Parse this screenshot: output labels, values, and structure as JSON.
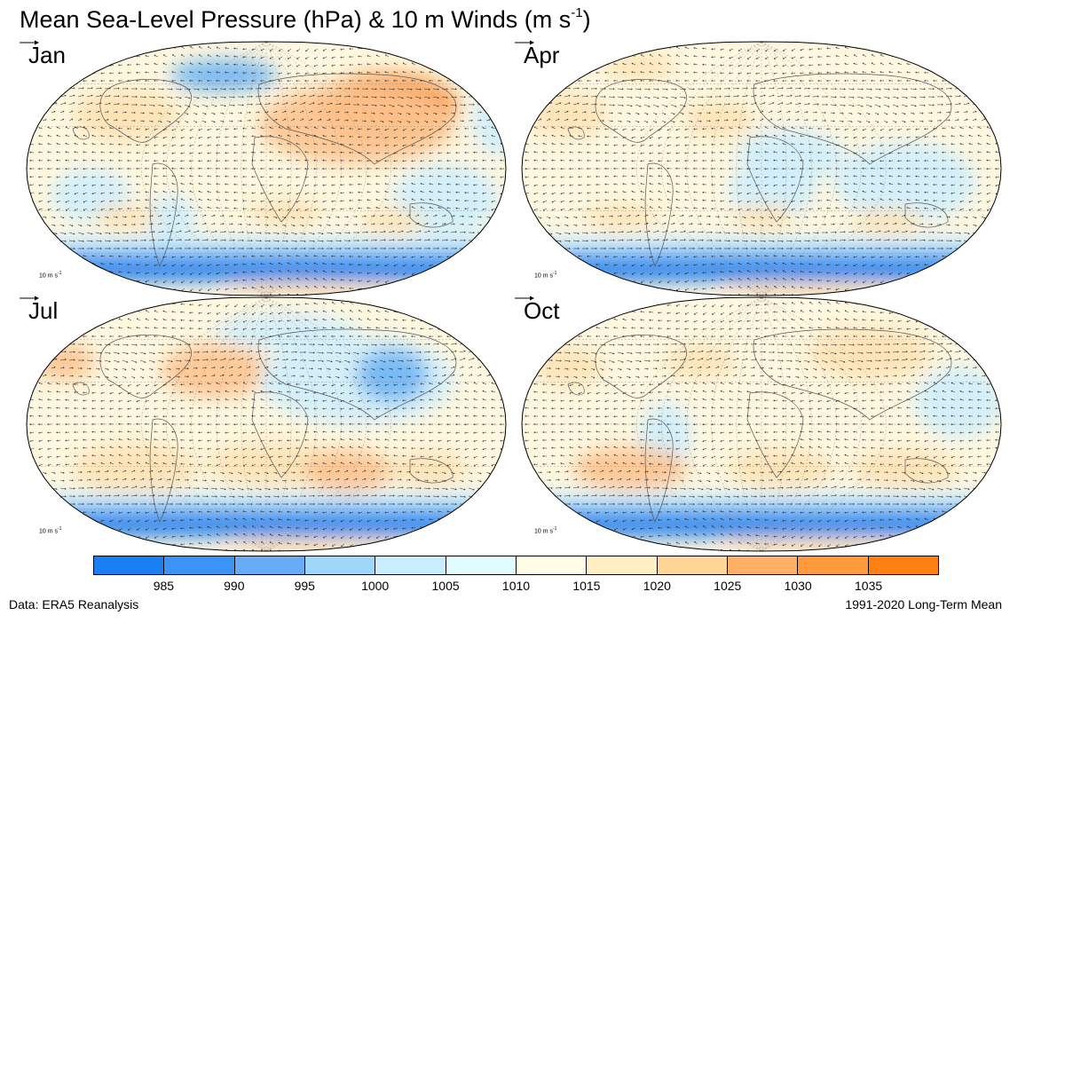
{
  "figure": {
    "title": "Mean Sea-Level Pressure (hPa) & 10 m Winds (m s",
    "title_superscript": "-1",
    "title_close": ")",
    "credit_left": "Data: ERA5 Reanalysis",
    "credit_right": "1991-2020 Long-Term Mean",
    "reference_vector_label": "10 m s",
    "reference_vector_superscript": "-1"
  },
  "panels": [
    {
      "label": "Jan"
    },
    {
      "label": "Apr"
    },
    {
      "label": "Jul"
    },
    {
      "label": "Oct"
    }
  ],
  "colorbar": {
    "ticks": [
      "985",
      "990",
      "995",
      "1000",
      "1005",
      "1010",
      "1015",
      "1020",
      "1025",
      "1030",
      "1035"
    ],
    "colors": [
      "#1a7ff0",
      "#3b93f5",
      "#66acf7",
      "#9fd7fb",
      "#c8edfc",
      "#e2fbfd",
      "#fffde6",
      "#fff0c4",
      "#ffd596",
      "#ffb066",
      "#ff9a3c",
      "#ff8010"
    ]
  },
  "map_palette": {
    "low_deep": "#2d86ee",
    "low_mid": "#6fb6f4",
    "low_light": "#cfeefc",
    "neutral": "#fff7df",
    "high_light": "#ffe2b5",
    "high_mid": "#ffc490",
    "high_deep": "#f7933e",
    "coastline": "#555555",
    "vector": "#222222"
  }
}
